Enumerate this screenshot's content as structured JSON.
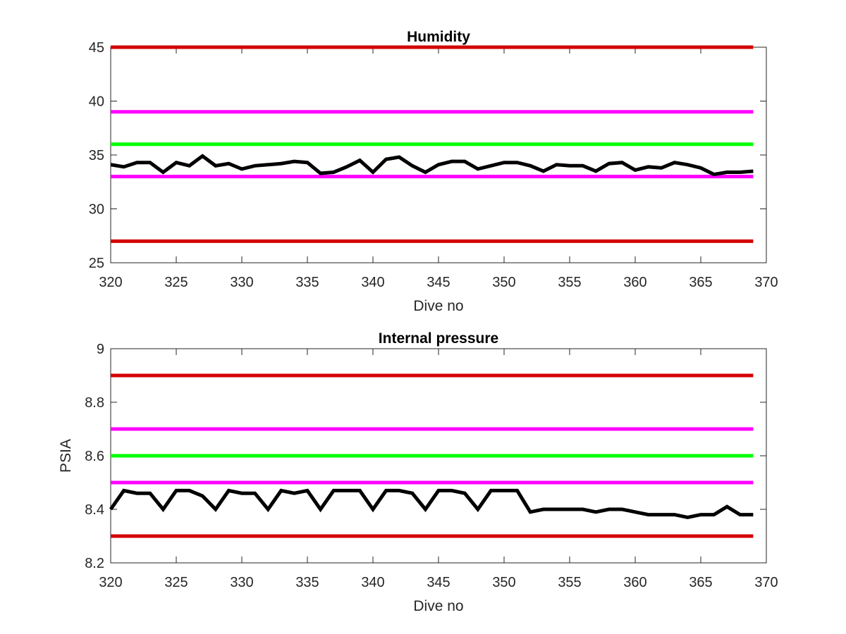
{
  "chart_data": [
    {
      "type": "line",
      "title": "Humidity",
      "xlabel": "Dive no",
      "ylabel": "",
      "xlim": [
        320,
        370
      ],
      "ylim": [
        25,
        45
      ],
      "xticks": [
        320,
        325,
        330,
        335,
        340,
        345,
        350,
        355,
        360,
        365,
        370
      ],
      "yticks": [
        25,
        30,
        35,
        40,
        45
      ],
      "grid": false,
      "legend": "none",
      "threshold_lines": [
        {
          "y": 45,
          "color": "#d40000"
        },
        {
          "y": 39,
          "color": "#ff00ff"
        },
        {
          "y": 36,
          "color": "#00ff00"
        },
        {
          "y": 33,
          "color": "#ff00ff"
        },
        {
          "y": 27,
          "color": "#d40000"
        }
      ],
      "series": [
        {
          "color": "#000000",
          "x": [
            320,
            321,
            322,
            323,
            324,
            325,
            326,
            327,
            328,
            329,
            330,
            331,
            332,
            333,
            334,
            335,
            336,
            337,
            338,
            339,
            340,
            341,
            342,
            343,
            344,
            345,
            346,
            347,
            348,
            349,
            350,
            351,
            352,
            353,
            354,
            355,
            356,
            357,
            358,
            359,
            360,
            361,
            362,
            363,
            364,
            365,
            366,
            367,
            368,
            369
          ],
          "y": [
            34.1,
            33.9,
            34.3,
            34.3,
            33.4,
            34.3,
            34.0,
            34.9,
            34.0,
            34.2,
            33.7,
            34.0,
            34.1,
            34.2,
            34.4,
            34.3,
            33.3,
            33.4,
            33.9,
            34.5,
            33.4,
            34.6,
            34.8,
            34.0,
            33.4,
            34.1,
            34.4,
            34.4,
            33.7,
            34.0,
            34.3,
            34.3,
            34.0,
            33.5,
            34.1,
            34.0,
            34.0,
            33.5,
            34.2,
            34.3,
            33.6,
            33.9,
            33.8,
            34.3,
            34.1,
            33.8,
            33.2,
            33.4,
            33.4,
            33.5
          ]
        }
      ]
    },
    {
      "type": "line",
      "title": "Internal pressure",
      "xlabel": "Dive no",
      "ylabel": "PSIA",
      "xlim": [
        320,
        370
      ],
      "ylim": [
        8.2,
        9
      ],
      "xticks": [
        320,
        325,
        330,
        335,
        340,
        345,
        350,
        355,
        360,
        365,
        370
      ],
      "yticks": [
        "8.2",
        "8.4",
        "8.6",
        "8.8",
        "9"
      ],
      "grid": false,
      "legend": "none",
      "threshold_lines": [
        {
          "y": 8.9,
          "color": "#d40000"
        },
        {
          "y": 8.7,
          "color": "#ff00ff"
        },
        {
          "y": 8.6,
          "color": "#00ff00"
        },
        {
          "y": 8.5,
          "color": "#ff00ff"
        },
        {
          "y": 8.3,
          "color": "#d40000"
        }
      ],
      "series": [
        {
          "color": "#000000",
          "x": [
            320,
            321,
            322,
            323,
            324,
            325,
            326,
            327,
            328,
            329,
            330,
            331,
            332,
            333,
            334,
            335,
            336,
            337,
            338,
            339,
            340,
            341,
            342,
            343,
            344,
            345,
            346,
            347,
            348,
            349,
            350,
            351,
            352,
            353,
            354,
            355,
            356,
            357,
            358,
            359,
            360,
            361,
            362,
            363,
            364,
            365,
            366,
            367,
            368,
            369
          ],
          "y": [
            8.4,
            8.47,
            8.46,
            8.46,
            8.4,
            8.47,
            8.47,
            8.45,
            8.4,
            8.47,
            8.46,
            8.46,
            8.4,
            8.47,
            8.46,
            8.47,
            8.4,
            8.47,
            8.47,
            8.47,
            8.4,
            8.47,
            8.47,
            8.46,
            8.4,
            8.47,
            8.47,
            8.46,
            8.4,
            8.47,
            8.47,
            8.47,
            8.39,
            8.4,
            8.4,
            8.4,
            8.4,
            8.39,
            8.4,
            8.4,
            8.39,
            8.38,
            8.38,
            8.38,
            8.37,
            8.38,
            8.38,
            8.41,
            8.38,
            8.38
          ]
        }
      ]
    }
  ]
}
